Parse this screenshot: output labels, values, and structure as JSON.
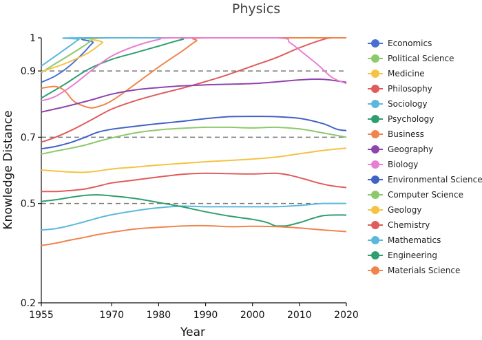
{
  "chart_data": {
    "type": "line",
    "title": "Physics",
    "xlabel": "Year",
    "ylabel": "Knowledge Distance",
    "xlim": [
      1955,
      2020
    ],
    "ylim": [
      0.2,
      1.0
    ],
    "xticks": [
      1955,
      1970,
      1980,
      1990,
      2000,
      2010,
      2020
    ],
    "yticks": [
      0.2,
      0.5,
      0.7,
      0.9,
      1.0
    ],
    "ytick_labels": [
      "0.2",
      "0.5",
      "0.7",
      "0.9",
      "1"
    ],
    "reference_lines": [
      0.5,
      0.7,
      0.9
    ],
    "grid": false,
    "legend_position": "right",
    "series": [
      {
        "name": "Economics",
        "color": "#4a6fd1",
        "x": [
          1955,
          1958,
          1961,
          1964,
          1966,
          1968,
          2020
        ],
        "y": [
          0.866,
          0.885,
          0.915,
          0.955,
          0.985,
          1.0,
          1.0
        ]
      },
      {
        "name": "Political Science",
        "color": "#8cc96b",
        "x": [
          1955,
          1958,
          1961,
          1964,
          1966,
          1967,
          2020
        ],
        "y": [
          0.895,
          0.922,
          0.948,
          0.975,
          0.995,
          1.0,
          1.0
        ]
      },
      {
        "name": "Medicine",
        "color": "#f5c242",
        "x": [
          1955,
          1960,
          1965,
          1968,
          1970,
          2020
        ],
        "y": [
          0.898,
          0.922,
          0.955,
          0.985,
          1.0,
          1.0
        ]
      },
      {
        "name": "Philosophy",
        "color": "#e05b5b",
        "x": [
          1955,
          1958,
          1962,
          1966,
          1970,
          1975,
          1980,
          1985,
          1990,
          1995,
          2000,
          2005,
          2010,
          2015,
          2017,
          2020
        ],
        "y": [
          0.685,
          0.7,
          0.725,
          0.755,
          0.785,
          0.81,
          0.83,
          0.848,
          0.868,
          0.89,
          0.915,
          0.94,
          0.97,
          0.995,
          1.0,
          1.0
        ]
      },
      {
        "name": "Sociology",
        "color": "#5bb8dc",
        "x": [
          1955,
          1957,
          1959,
          1961,
          1963,
          1964,
          2020
        ],
        "y": [
          0.915,
          0.935,
          0.955,
          0.975,
          0.995,
          1.0,
          1.0
        ]
      },
      {
        "name": "Psychology",
        "color": "#2e9e6e",
        "x": [
          1955,
          1960,
          1965,
          1970,
          1975,
          1980,
          1985,
          1988,
          2020
        ],
        "y": [
          0.818,
          0.86,
          0.905,
          0.935,
          0.955,
          0.975,
          0.995,
          1.0,
          1.0
        ]
      },
      {
        "name": "Business",
        "color": "#f0844c",
        "x": [
          1955,
          1958,
          1960,
          1962,
          1965,
          1967,
          1970,
          1975,
          1980,
          1985,
          1988,
          1990,
          2020
        ],
        "y": [
          0.848,
          0.853,
          0.84,
          0.808,
          0.79,
          0.792,
          0.81,
          0.86,
          0.912,
          0.96,
          0.99,
          1.0,
          1.0
        ]
      },
      {
        "name": "Geography",
        "color": "#8e44ad",
        "x": [
          1955,
          1960,
          1965,
          1970,
          1975,
          1980,
          1985,
          1990,
          1995,
          2000,
          2005,
          2010,
          2015,
          2020
        ],
        "y": [
          0.776,
          0.792,
          0.81,
          0.83,
          0.843,
          0.85,
          0.855,
          0.858,
          0.86,
          0.862,
          0.867,
          0.873,
          0.875,
          0.866
        ]
      },
      {
        "name": "Biology",
        "color": "#e87fd2",
        "x": [
          1955,
          1958,
          1962,
          1966,
          1970,
          1975,
          1980,
          1983,
          2005,
          2008,
          2011,
          2014,
          2017,
          2020
        ],
        "y": [
          0.81,
          0.823,
          0.86,
          0.905,
          0.945,
          0.975,
          0.995,
          1.0,
          1.0,
          0.985,
          0.952,
          0.918,
          0.88,
          0.862
        ]
      },
      {
        "name": "Environmental Science",
        "color": "#4062c5",
        "x": [
          1955,
          1958,
          1961,
          1964,
          1967,
          1970,
          1975,
          1980,
          1985,
          1990,
          1995,
          2000,
          2005,
          2010,
          2015,
          2018,
          2020
        ],
        "y": [
          0.665,
          0.672,
          0.683,
          0.698,
          0.715,
          0.724,
          0.733,
          0.741,
          0.748,
          0.756,
          0.762,
          0.763,
          0.762,
          0.757,
          0.741,
          0.724,
          0.72
        ]
      },
      {
        "name": "Computer Science",
        "color": "#8cc96b",
        "x": [
          1955,
          1958,
          1961,
          1964,
          1967,
          1970,
          1975,
          1980,
          1985,
          1990,
          1995,
          2000,
          2005,
          2010,
          2015,
          2020
        ],
        "y": [
          0.649,
          0.658,
          0.666,
          0.675,
          0.687,
          0.698,
          0.713,
          0.722,
          0.727,
          0.73,
          0.73,
          0.728,
          0.73,
          0.725,
          0.713,
          0.7
        ]
      },
      {
        "name": "Geology",
        "color": "#f5c242",
        "x": [
          1955,
          1958,
          1961,
          1964,
          1967,
          1970,
          1975,
          1980,
          1985,
          1990,
          1995,
          2000,
          2005,
          2010,
          2015,
          2020
        ],
        "y": [
          0.601,
          0.598,
          0.595,
          0.594,
          0.598,
          0.604,
          0.61,
          0.616,
          0.621,
          0.626,
          0.63,
          0.634,
          0.64,
          0.65,
          0.66,
          0.667
        ]
      },
      {
        "name": "Chemistry",
        "color": "#e05b5b",
        "x": [
          1955,
          1958,
          1961,
          1964,
          1967,
          1970,
          1975,
          1980,
          1985,
          1990,
          1995,
          2000,
          2005,
          2008,
          2011,
          2014,
          2017,
          2020
        ],
        "y": [
          0.536,
          0.536,
          0.539,
          0.543,
          0.552,
          0.562,
          0.571,
          0.58,
          0.588,
          0.591,
          0.59,
          0.589,
          0.591,
          0.585,
          0.574,
          0.562,
          0.553,
          0.548
        ]
      },
      {
        "name": "Mathematics",
        "color": "#5bb8dc",
        "x": [
          1955,
          1958,
          1961,
          1964,
          1967,
          1970,
          1975,
          1980,
          1985,
          1990,
          1995,
          2000,
          2005,
          2010,
          2015,
          2020
        ],
        "y": [
          0.42,
          0.424,
          0.433,
          0.444,
          0.456,
          0.466,
          0.478,
          0.487,
          0.492,
          0.49,
          0.49,
          0.49,
          0.49,
          0.494,
          0.5,
          0.5
        ]
      },
      {
        "name": "Engineering",
        "color": "#2e9e6e",
        "x": [
          1955,
          1958,
          1961,
          1964,
          1967,
          1970,
          1975,
          1980,
          1985,
          1990,
          1995,
          2000,
          2003,
          2005,
          2007,
          2010,
          2015,
          2020
        ],
        "y": [
          0.506,
          0.511,
          0.518,
          0.524,
          0.526,
          0.523,
          0.515,
          0.503,
          0.49,
          0.475,
          0.462,
          0.452,
          0.443,
          0.432,
          0.432,
          0.442,
          0.463,
          0.465
        ]
      },
      {
        "name": "Materials Science",
        "color": "#f0844c",
        "x": [
          1955,
          1958,
          1961,
          1964,
          1967,
          1970,
          1975,
          1980,
          1985,
          1990,
          1995,
          2000,
          2005,
          2010,
          2015,
          2020
        ],
        "y": [
          0.373,
          0.38,
          0.389,
          0.397,
          0.406,
          0.413,
          0.423,
          0.428,
          0.432,
          0.433,
          0.43,
          0.431,
          0.43,
          0.426,
          0.42,
          0.415
        ]
      }
    ]
  }
}
